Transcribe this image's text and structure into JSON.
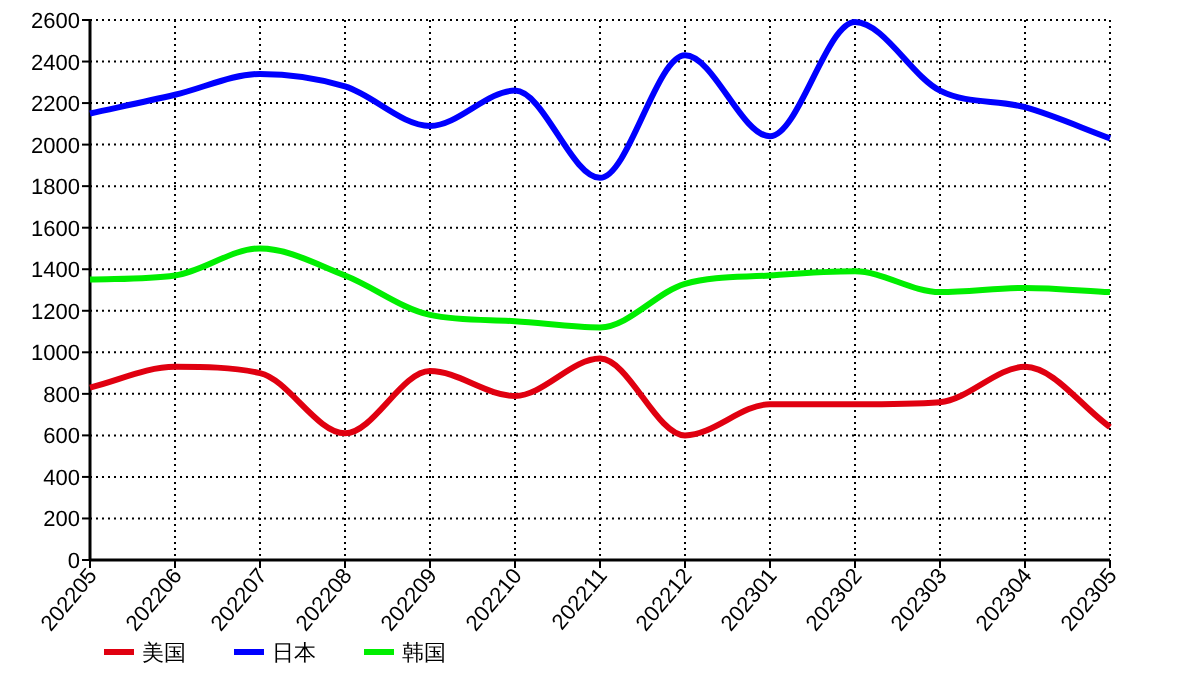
{
  "chart_data": {
    "type": "line",
    "categories": [
      "202205",
      "202206",
      "202207",
      "202208",
      "202209",
      "202210",
      "202211",
      "202212",
      "202301",
      "202302",
      "202303",
      "202304",
      "202305"
    ],
    "series": [
      {
        "name": "美国",
        "color": "#e00010",
        "values": [
          830,
          930,
          900,
          610,
          910,
          790,
          970,
          600,
          750,
          750,
          760,
          930,
          640
        ]
      },
      {
        "name": "日本",
        "color": "#0000ff",
        "values": [
          2150,
          2240,
          2340,
          2280,
          2090,
          2260,
          1840,
          2430,
          2040,
          2590,
          2260,
          2180,
          2030
        ]
      },
      {
        "name": "韩国",
        "color": "#00ee00",
        "values": [
          1350,
          1370,
          1500,
          1370,
          1180,
          1150,
          1120,
          1330,
          1370,
          1390,
          1290,
          1310,
          1290
        ]
      }
    ],
    "ylim": [
      0,
      2600
    ],
    "yticks": [
      0,
      200,
      400,
      600,
      800,
      1000,
      1200,
      1400,
      1600,
      1800,
      2000,
      2200,
      2400,
      2600
    ],
    "grid": true,
    "legend": "bottom",
    "marker": "none",
    "line_style": "solid"
  }
}
